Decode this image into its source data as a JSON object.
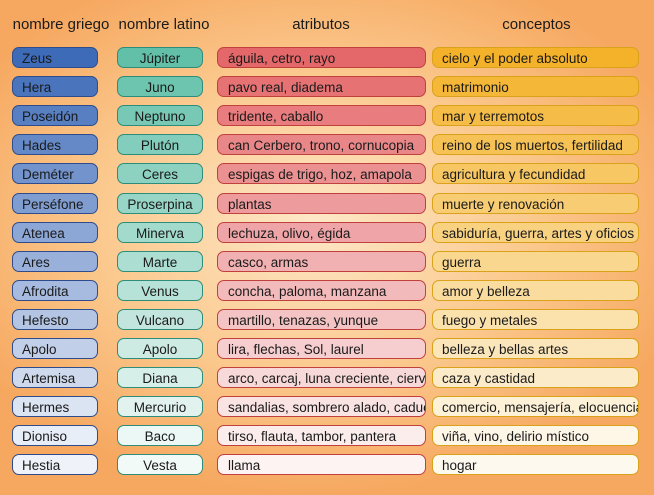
{
  "headers": {
    "greek": "nombre griego",
    "latin": "nombre latino",
    "attributes": "atributos",
    "concepts": "conceptos"
  },
  "gradients": {
    "greek": {
      "from": "#3d6bb8",
      "to": "#ffffff"
    },
    "latin": {
      "from": "#62c0a9",
      "to": "#ffffff"
    },
    "attributes": {
      "from": "#e4686a",
      "to": "#ffffff"
    },
    "concepts": {
      "from": "#f4b22a",
      "to": "#ffffff"
    }
  },
  "rows": [
    {
      "greek": "Zeus",
      "latin": "Júpiter",
      "attributes": "águila, cetro, rayo",
      "concepts": "cielo y el poder absoluto"
    },
    {
      "greek": "Hera",
      "latin": "Juno",
      "attributes": "pavo real, diadema",
      "concepts": "matrimonio"
    },
    {
      "greek": "Poseidón",
      "latin": "Neptuno",
      "attributes": "tridente, caballo",
      "concepts": "mar y terremotos"
    },
    {
      "greek": "Hades",
      "latin": "Plutón",
      "attributes": "can Cerbero, trono, cornucopia",
      "concepts": "reino de los muertos, fertilidad"
    },
    {
      "greek": "Deméter",
      "latin": "Ceres",
      "attributes": "espigas de trigo, hoz, amapola",
      "concepts": "agricultura y fecundidad"
    },
    {
      "greek": "Perséfone",
      "latin": "Proserpina",
      "attributes": "plantas",
      "concepts": "muerte y renovación"
    },
    {
      "greek": "Atenea",
      "latin": "Minerva",
      "attributes": "lechuza, olivo, égida",
      "concepts": "sabiduría, guerra, artes y oficios"
    },
    {
      "greek": "Ares",
      "latin": "Marte",
      "attributes": "casco, armas",
      "concepts": "guerra"
    },
    {
      "greek": "Afrodita",
      "latin": "Venus",
      "attributes": "concha, paloma, manzana",
      "concepts": "amor y belleza"
    },
    {
      "greek": "Hefesto",
      "latin": "Vulcano",
      "attributes": "martillo, tenazas, yunque",
      "concepts": "fuego y metales"
    },
    {
      "greek": "Apolo",
      "latin": "Apolo",
      "attributes": "lira, flechas, Sol, laurel",
      "concepts": "belleza y bellas artes"
    },
    {
      "greek": "Artemisa",
      "latin": "Diana",
      "attributes": "arco, carcaj, luna creciente, cierva",
      "concepts": "caza y castidad"
    },
    {
      "greek": "Hermes",
      "latin": "Mercurio",
      "attributes": "sandalias, sombrero alado, caduceo",
      "concepts": "comercio, mensajería, elocuencia"
    },
    {
      "greek": "Dioniso",
      "latin": "Baco",
      "attributes": "tirso, flauta, tambor, pantera",
      "concepts": "viña, vino, delirio místico"
    },
    {
      "greek": "Hestia",
      "latin": "Vesta",
      "attributes": "llama",
      "concepts": "hogar"
    }
  ]
}
